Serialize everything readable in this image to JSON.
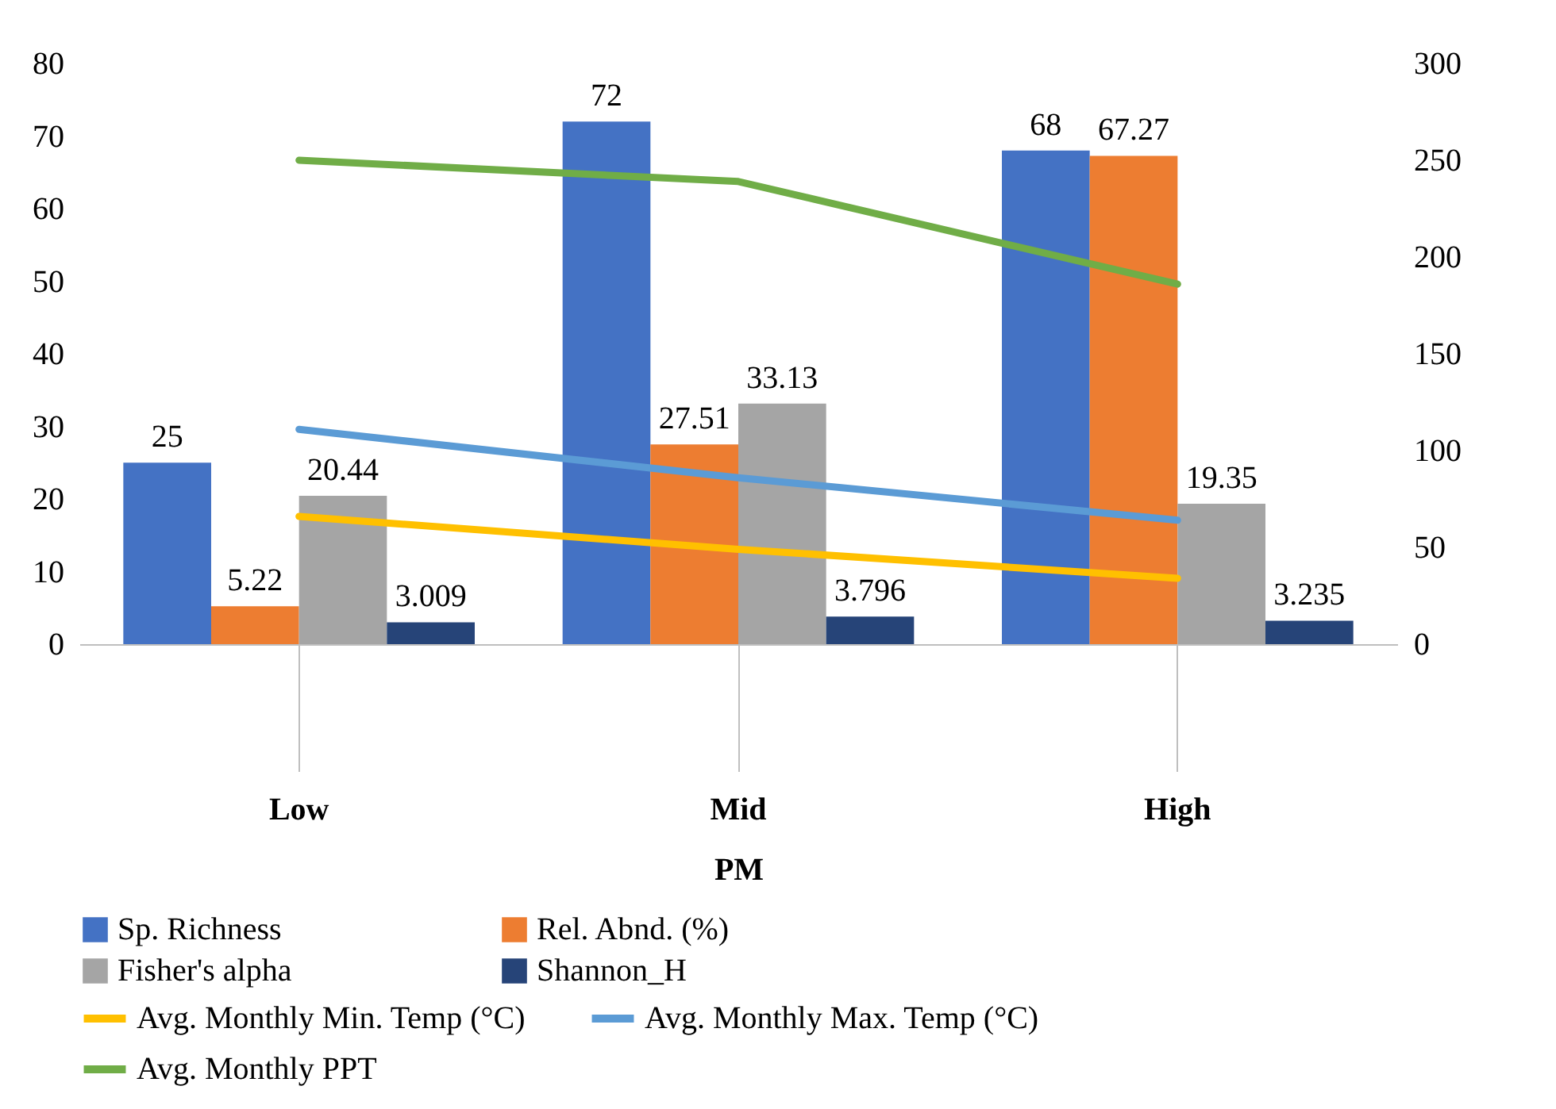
{
  "chart_data": {
    "type": "bar",
    "categories": [
      "Low",
      "Mid",
      "High"
    ],
    "xlabel": "PM",
    "ylim": [
      0,
      80
    ],
    "yticks": [
      0,
      10,
      20,
      30,
      40,
      50,
      60,
      70,
      80
    ],
    "y2lim": [
      0,
      300
    ],
    "y2ticks": [
      0,
      50,
      100,
      150,
      200,
      250,
      300
    ],
    "grid": false,
    "legend": "bottom",
    "series": [
      {
        "name": "Sp. Richness",
        "color": "#4472c4",
        "values": [
          25,
          72,
          68
        ],
        "value_labels": [
          "25",
          "72",
          "68"
        ]
      },
      {
        "name": "Rel. Abnd. (%)",
        "color": "#ed7d31",
        "values": [
          5.22,
          27.51,
          67.27
        ],
        "value_labels": [
          "5.22",
          "27.51",
          "67.27"
        ]
      },
      {
        "name": "Fisher's alpha",
        "color": "#a5a5a5",
        "values": [
          20.44,
          33.13,
          19.35
        ],
        "value_labels": [
          "20.44",
          "33.13",
          "19.35"
        ]
      },
      {
        "name": "Shannon_H",
        "color": "#264478",
        "values": [
          3.009,
          3.796,
          3.235
        ],
        "value_labels": [
          "3.009",
          "3.796",
          "3.235"
        ]
      },
      {
        "name": "Avg. Monthly Min. Temp (°C)",
        "color": "#ffc000",
        "type": "line",
        "axis": "y2",
        "values": [
          66,
          49,
          34
        ]
      },
      {
        "name": "Avg. Monthly Max. Temp (°C)",
        "color": "#5b9bd5",
        "type": "line",
        "axis": "y2",
        "values": [
          111,
          86,
          64
        ]
      },
      {
        "name": "Avg. Monthly PPT",
        "color": "#70ad47",
        "type": "line",
        "axis": "y2",
        "values": [
          250,
          239,
          186
        ]
      }
    ]
  }
}
